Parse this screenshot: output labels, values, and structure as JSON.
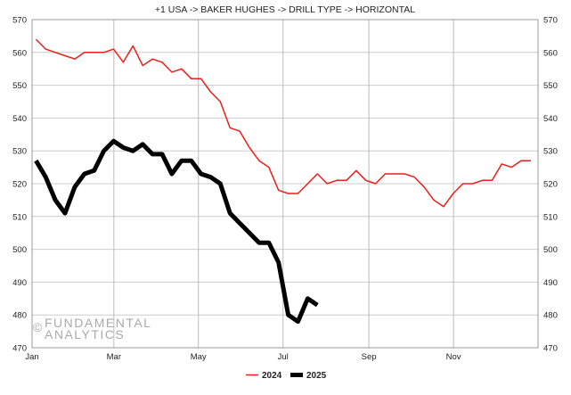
{
  "chart_data": {
    "type": "line",
    "title": "+1 USA -> BAKER HUGHES -> DRILL TYPE -> HORIZONTAL",
    "xlabel": "",
    "ylabel": "",
    "ylim": [
      470,
      570
    ],
    "y_ticks": [
      470,
      480,
      490,
      500,
      510,
      520,
      530,
      540,
      550,
      560,
      570
    ],
    "y_axis_sides": "left and right",
    "x_tick_labels": [
      "Jan",
      "Mar",
      "May",
      "Jul",
      "Sep",
      "Nov"
    ],
    "x_tick_weeks": [
      0,
      8.43,
      17.14,
      25.86,
      34.71,
      43.43
    ],
    "x_weeks_label": "week of year (0 = Jan 1)",
    "grid": true,
    "legend_position": "bottom-center",
    "series": [
      {
        "name": "2024",
        "color": "#e8201a",
        "line_weight": "thin",
        "values": [
          564,
          561,
          560,
          559,
          558,
          560,
          560,
          560,
          561,
          557,
          562,
          556,
          558,
          557,
          554,
          555,
          552,
          552,
          548,
          545,
          537,
          536,
          531,
          527,
          525,
          518,
          517,
          517,
          520,
          523,
          520,
          521,
          521,
          524,
          521,
          520,
          523,
          523,
          523,
          522,
          519,
          515,
          513,
          517,
          520,
          520,
          521,
          521,
          526,
          525,
          527,
          527
        ]
      },
      {
        "name": "2025",
        "color": "#000000",
        "line_weight": "thick",
        "values": [
          527,
          522,
          515,
          511,
          519,
          523,
          524,
          530,
          533,
          531,
          530,
          532,
          529,
          529,
          523,
          527,
          527,
          523,
          522,
          520,
          511,
          508,
          505,
          502,
          502,
          496,
          480,
          478,
          485,
          483
        ]
      }
    ],
    "watermark": {
      "line1": "FUNDAMENTAL",
      "line2": "ANALYTICS",
      "symbol": "©"
    }
  }
}
